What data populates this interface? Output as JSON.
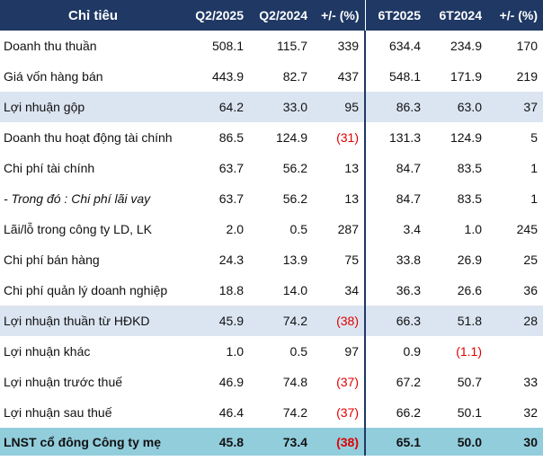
{
  "header": {
    "indicator": "Chỉ tiêu",
    "q2_2025": "Q2/2025",
    "q2_2024": "Q2/2024",
    "q_change": "+/- (%)",
    "h1_2025": "6T2025",
    "h1_2024": "6T2024",
    "h_change": "+/- (%)"
  },
  "rows": [
    {
      "label": "Doanh thu thuần",
      "q2025": "508.1",
      "q2024": "115.7",
      "qchg": "339",
      "h2025": "634.4",
      "h2024": "234.9",
      "hchg": "170"
    },
    {
      "label": "Giá vốn hàng bán",
      "q2025": "443.9",
      "q2024": "82.7",
      "qchg": "437",
      "h2025": "548.1",
      "h2024": "171.9",
      "hchg": "219"
    },
    {
      "label": "Lợi nhuận gộp",
      "q2025": "64.2",
      "q2024": "33.0",
      "qchg": "95",
      "h2025": "86.3",
      "h2024": "63.0",
      "hchg": "37"
    },
    {
      "label": "Doanh thu hoạt động tài chính",
      "q2025": "86.5",
      "q2024": "124.9",
      "qchg": "(31)",
      "h2025": "131.3",
      "h2024": "124.9",
      "hchg": "5"
    },
    {
      "label": "Chi phí tài chính",
      "q2025": "63.7",
      "q2024": "56.2",
      "qchg": "13",
      "h2025": "84.7",
      "h2024": "83.5",
      "hchg": "1"
    },
    {
      "label": "- Trong đó : Chi phí lãi vay",
      "q2025": "63.7",
      "q2024": "56.2",
      "qchg": "13",
      "h2025": "84.7",
      "h2024": "83.5",
      "hchg": "1"
    },
    {
      "label": "Lãi/lỗ trong công ty LD, LK",
      "q2025": "2.0",
      "q2024": "0.5",
      "qchg": "287",
      "h2025": "3.4",
      "h2024": "1.0",
      "hchg": "245"
    },
    {
      "label": "Chi phí bán hàng",
      "q2025": "24.3",
      "q2024": "13.9",
      "qchg": "75",
      "h2025": "33.8",
      "h2024": "26.9",
      "hchg": "25"
    },
    {
      "label": "Chi phí quản lý doanh nghiệp",
      "q2025": "18.8",
      "q2024": "14.0",
      "qchg": "34",
      "h2025": "36.3",
      "h2024": "26.6",
      "hchg": "36"
    },
    {
      "label": "Lợi nhuận thuần từ HĐKD",
      "q2025": "45.9",
      "q2024": "74.2",
      "qchg": "(38)",
      "h2025": "66.3",
      "h2024": "51.8",
      "hchg": "28"
    },
    {
      "label": "Lợi nhuận khác",
      "q2025": "1.0",
      "q2024": "0.5",
      "qchg": "97",
      "h2025": "0.9",
      "h2024": "(1.1)",
      "hchg": ""
    },
    {
      "label": "Lợi nhuận trước thuế",
      "q2025": "46.9",
      "q2024": "74.8",
      "qchg": "(37)",
      "h2025": "67.2",
      "h2024": "50.7",
      "hchg": "33"
    },
    {
      "label": "Lợi nhuận sau thuế",
      "q2025": "46.4",
      "q2024": "74.2",
      "qchg": "(37)",
      "h2025": "66.2",
      "h2024": "50.1",
      "hchg": "32"
    },
    {
      "label": "LNST cổ đông Công ty mẹ",
      "q2025": "45.8",
      "q2024": "73.4",
      "qchg": "(38)",
      "h2025": "65.1",
      "h2024": "50.0",
      "hchg": "30"
    }
  ],
  "colors": {
    "header_bg": "#1f3864",
    "highlight_bg": "#dbe5f1",
    "total_bg": "#92cddc",
    "negative": "#e00000"
  }
}
